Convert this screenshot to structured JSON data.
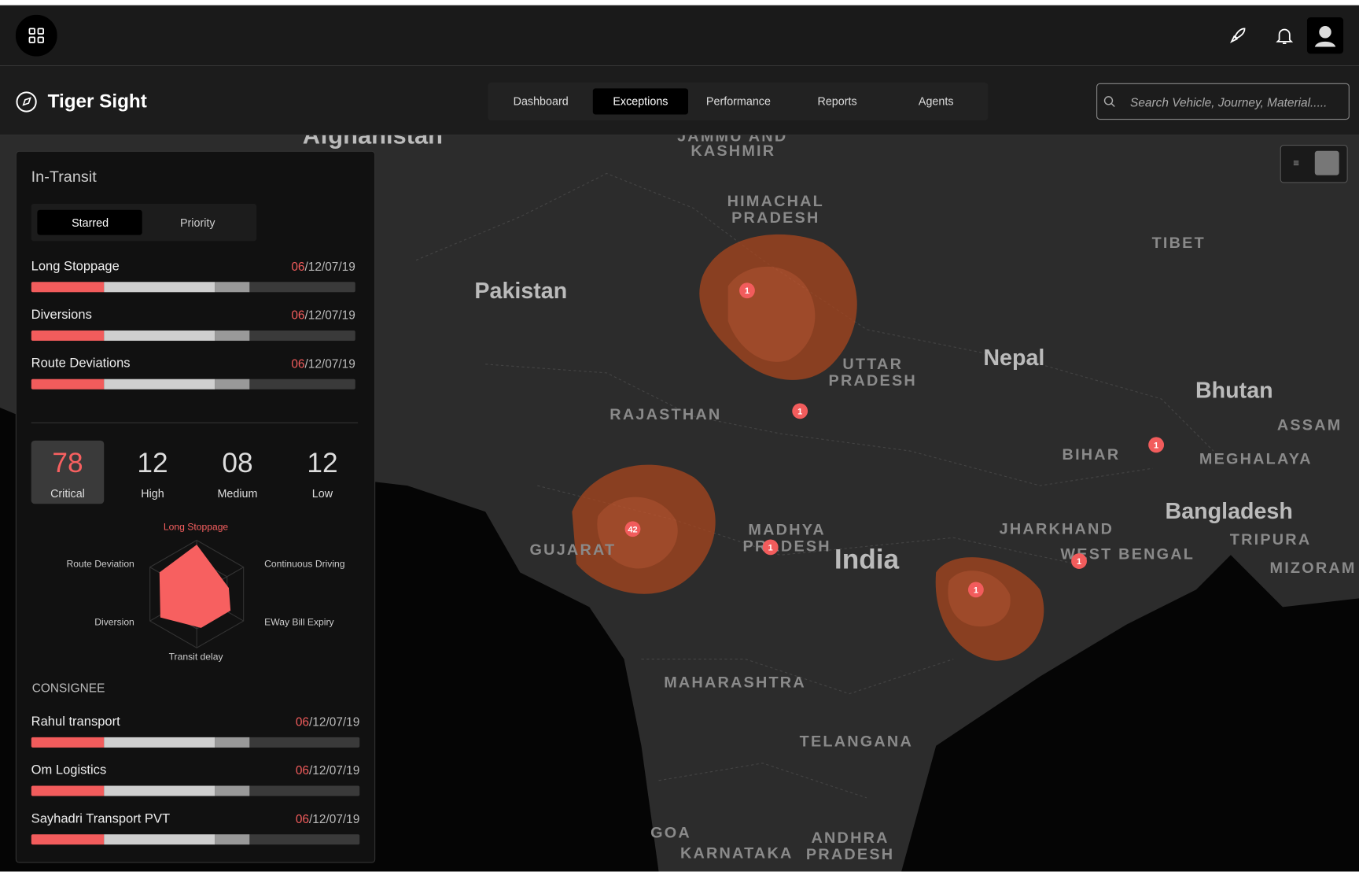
{
  "header": {
    "title": "Tiger Sight"
  },
  "nav": {
    "tabs": [
      "Dashboard",
      "Exceptions",
      "Performance",
      "Reports",
      "Agents"
    ],
    "search_placeholder": "Search Vehicle, Journey, Material....."
  },
  "panel": {
    "title": "In-Transit",
    "toggles": [
      "Starred",
      "Priority"
    ],
    "exceptions": [
      {
        "name": "Long Stoppage",
        "date_highlight": "06",
        "date_rest": "/12/07/19"
      },
      {
        "name": "Diversions",
        "date_highlight": "06",
        "date_rest": "/12/07/19"
      },
      {
        "name": "Route Deviations",
        "date_highlight": "06",
        "date_rest": "/12/07/19"
      }
    ],
    "severity": [
      {
        "count": "78",
        "label": "Critical"
      },
      {
        "count": "12",
        "label": "High"
      },
      {
        "count": "08",
        "label": "Medium"
      },
      {
        "count": "12",
        "label": "Low"
      }
    ],
    "radar_labels": [
      "Long Stoppage",
      "Route Deviation",
      "Continuous Driving",
      "Diversion",
      "EWay Bill Expiry",
      "Transit delay"
    ],
    "consignee_title": "CONSIGNEE",
    "consignees": [
      {
        "name": "Rahul transport",
        "date_highlight": "06",
        "date_rest": "/12/07/19"
      },
      {
        "name": "Om Logistics",
        "date_highlight": "06",
        "date_rest": "/12/07/19"
      },
      {
        "name": "Sayhadri Transport PVT",
        "date_highlight": "06",
        "date_rest": "/12/07/19"
      }
    ]
  },
  "map": {
    "labels": [
      "Afghanistan",
      "JAMMU AND",
      "KASHMIR",
      "HIMACHAL",
      "PRADESH",
      "Pakistan",
      "TIBET",
      "UTTAR",
      "PRADESH",
      "Nepal",
      "Bhutan",
      "RAJASTHAN",
      "BIHAR",
      "ASSAM",
      "MEGHALAYA",
      "Bangladesh",
      "JHARKHAND",
      "MADHYA",
      "PRADESH",
      "GUJARAT",
      "India",
      "WEST BENGAL",
      "TRIPURA",
      "MIZORAM",
      "MAHARASHTRA",
      "TELANGANA",
      "GOA",
      "KARNATAKA",
      "ANDHRA",
      "PRADESH"
    ],
    "markers": [
      "1",
      "1",
      "42",
      "1",
      "1",
      "1",
      "1"
    ]
  }
}
